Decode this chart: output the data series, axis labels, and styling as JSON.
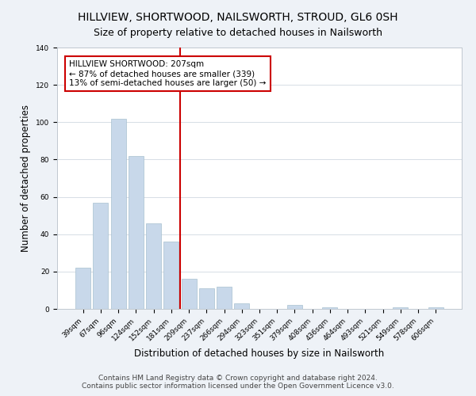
{
  "title": "HILLVIEW, SHORTWOOD, NAILSWORTH, STROUD, GL6 0SH",
  "subtitle": "Size of property relative to detached houses in Nailsworth",
  "xlabel": "Distribution of detached houses by size in Nailsworth",
  "ylabel": "Number of detached properties",
  "bar_color": "#c8d8ea",
  "bar_edge_color": "#a8c0d0",
  "categories": [
    "39sqm",
    "67sqm",
    "96sqm",
    "124sqm",
    "152sqm",
    "181sqm",
    "209sqm",
    "237sqm",
    "266sqm",
    "294sqm",
    "323sqm",
    "351sqm",
    "379sqm",
    "408sqm",
    "436sqm",
    "464sqm",
    "493sqm",
    "521sqm",
    "549sqm",
    "578sqm",
    "606sqm"
  ],
  "values": [
    22,
    57,
    102,
    82,
    46,
    36,
    16,
    11,
    12,
    3,
    0,
    0,
    2,
    0,
    1,
    0,
    0,
    0,
    1,
    0,
    1
  ],
  "vline_index": 5.5,
  "vline_color": "#cc0000",
  "annotation_title": "HILLVIEW SHORTWOOD: 207sqm",
  "annotation_line1": "← 87% of detached houses are smaller (339)",
  "annotation_line2": "13% of semi-detached houses are larger (50) →",
  "annotation_box_color": "#ffffff",
  "annotation_box_edge": "#cc0000",
  "ylim": [
    0,
    140
  ],
  "yticks": [
    0,
    20,
    40,
    60,
    80,
    100,
    120,
    140
  ],
  "footer_line1": "Contains HM Land Registry data © Crown copyright and database right 2024.",
  "footer_line2": "Contains public sector information licensed under the Open Government Licence v3.0.",
  "background_color": "#eef2f7",
  "plot_background": "#ffffff",
  "grid_color": "#d0d8e0",
  "title_fontsize": 10,
  "subtitle_fontsize": 9,
  "axis_label_fontsize": 8.5,
  "tick_fontsize": 6.5,
  "footer_fontsize": 6.5,
  "annotation_fontsize": 7.5
}
